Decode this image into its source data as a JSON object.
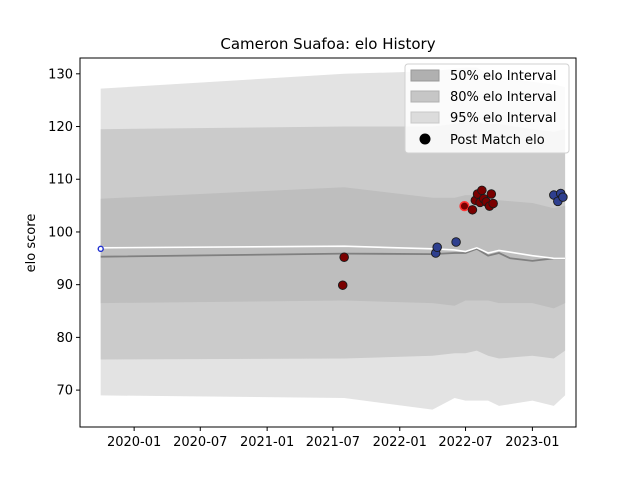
{
  "chart_data": {
    "type": "line",
    "title": "Cameron Suafoa: elo History",
    "xlabel": "",
    "ylabel": "elo score",
    "xlim": [
      "2019-08-05",
      "2023-05-01"
    ],
    "ylim": [
      63.0,
      133.0
    ],
    "x_ticks": [
      "2020-01",
      "2020-07",
      "2021-01",
      "2021-07",
      "2022-01",
      "2022-07",
      "2023-01"
    ],
    "y_ticks": [
      70,
      80,
      90,
      100,
      110,
      120,
      130
    ],
    "grid": false,
    "legend": {
      "placement": "top-right",
      "entries": [
        "50% elo Interval",
        "80% elo Interval",
        "95% elo Interval",
        "Post Match elo"
      ]
    },
    "colors": {
      "band95": "#e3e3e3",
      "band80": "#cbcbcb",
      "band50": "#bebebe",
      "mean_line": "#808080",
      "post_line": "#ffffff",
      "win_marker": "#2e3f8f",
      "loss_marker": "#7a0000",
      "highlight_ring": "#ff3333"
    },
    "intervals": {
      "x": [
        "2019-10-01",
        "2021-08-01",
        "2022-04-01",
        "2022-06-01",
        "2022-07-01",
        "2022-08-01",
        "2022-09-01",
        "2022-10-01",
        "2023-01-01",
        "2023-03-01",
        "2023-04-01"
      ],
      "p95_upper": [
        127.2,
        130.0,
        130.5,
        131.0,
        131.2,
        131.2,
        130.0,
        129.5,
        128.5,
        128.0,
        127.5
      ],
      "p95_lower": [
        69.0,
        68.5,
        66.3,
        68.5,
        68.0,
        68.0,
        68.0,
        67.0,
        68.0,
        67.0,
        69.0
      ],
      "p80_upper": [
        119.5,
        120.0,
        120.0,
        120.5,
        121.0,
        120.8,
        120.5,
        120.5,
        119.5,
        119.0,
        119.5
      ],
      "p80_lower": [
        75.8,
        76.0,
        76.5,
        77.0,
        77.0,
        77.5,
        76.5,
        76.0,
        76.5,
        76.0,
        77.5
      ],
      "p50_upper": [
        106.3,
        108.5,
        106.5,
        106.5,
        107.0,
        107.0,
        106.0,
        106.0,
        105.5,
        104.5,
        105.0
      ],
      "p50_lower": [
        86.5,
        87.0,
        86.5,
        86.0,
        87.0,
        87.0,
        87.0,
        86.5,
        86.5,
        85.5,
        86.5
      ]
    },
    "series": [
      {
        "x": [
          "2019-10-01",
          "2021-08-01",
          "2022-04-01",
          "2022-06-01",
          "2022-07-01",
          "2022-08-01",
          "2022-09-01",
          "2022-10-01",
          "2022-11-01",
          "2023-01-01",
          "2023-03-01",
          "2023-04-01"
        ],
        "values": [
          95.3,
          95.9,
          95.8,
          96.0,
          96.0,
          96.8,
          95.5,
          96.0,
          95.0,
          94.5,
          95.0,
          95.0
        ]
      },
      {
        "x": [
          "2019-10-01",
          "2021-08-01",
          "2022-04-01",
          "2022-06-01",
          "2022-07-01",
          "2022-08-01",
          "2022-09-01",
          "2022-10-01",
          "2023-01-01",
          "2023-03-01",
          "2023-04-01"
        ],
        "values": [
          97.0,
          97.3,
          96.8,
          96.6,
          96.3,
          97.0,
          96.0,
          96.5,
          95.5,
          95.0,
          95.0
        ]
      }
    ],
    "post_match_elo": [
      {
        "date": "2019-10-01",
        "elo": 96.8,
        "result": "start"
      },
      {
        "date": "2021-08-01",
        "elo": 95.2,
        "result": "loss"
      },
      {
        "date": "2021-07-28",
        "elo": 89.9,
        "result": "loss"
      },
      {
        "date": "2022-04-10",
        "elo": 96.0,
        "result": "win"
      },
      {
        "date": "2022-04-14",
        "elo": 97.1,
        "result": "win"
      },
      {
        "date": "2022-06-05",
        "elo": 98.1,
        "result": "win"
      },
      {
        "date": "2022-06-28",
        "elo": 104.9,
        "result": "loss",
        "highlight": true
      },
      {
        "date": "2022-07-20",
        "elo": 104.2,
        "result": "loss"
      },
      {
        "date": "2022-07-28",
        "elo": 106.0,
        "result": "loss"
      },
      {
        "date": "2022-08-03",
        "elo": 107.2,
        "result": "loss"
      },
      {
        "date": "2022-08-10",
        "elo": 105.6,
        "result": "loss"
      },
      {
        "date": "2022-08-15",
        "elo": 107.9,
        "result": "loss"
      },
      {
        "date": "2022-08-20",
        "elo": 106.3,
        "result": "loss"
      },
      {
        "date": "2022-08-27",
        "elo": 105.7,
        "result": "loss"
      },
      {
        "date": "2022-09-05",
        "elo": 104.9,
        "result": "loss"
      },
      {
        "date": "2022-09-10",
        "elo": 107.2,
        "result": "loss"
      },
      {
        "date": "2022-09-15",
        "elo": 105.4,
        "result": "loss"
      },
      {
        "date": "2023-03-01",
        "elo": 107.0,
        "result": "win"
      },
      {
        "date": "2023-03-12",
        "elo": 105.8,
        "result": "win"
      },
      {
        "date": "2023-03-20",
        "elo": 107.3,
        "result": "win"
      },
      {
        "date": "2023-03-26",
        "elo": 106.6,
        "result": "win"
      }
    ]
  }
}
